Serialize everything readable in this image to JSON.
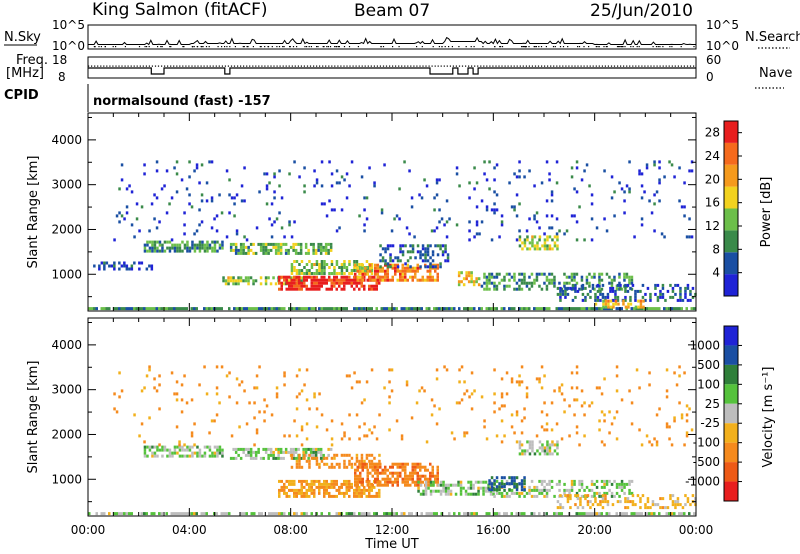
{
  "header": {
    "station": "King Salmon (fitACF)",
    "beam": "Beam 07",
    "date": "25/Jun/2010"
  },
  "top_panels": {
    "nsky_label": "N.Sky",
    "nsky_ticks": [
      "10^5",
      "10^0"
    ],
    "nsearch_label": "N.Search",
    "nsearch_ticks": [
      "10^5",
      "10^0"
    ],
    "freq_label_1": "Freq.",
    "freq_label_2": "[MHz]",
    "freq_ticks": [
      "18",
      "8"
    ],
    "nave_label": "Nave",
    "nave_ticks": [
      "60",
      "0"
    ],
    "cpid_label": "CPID",
    "cpid_text": "normalsound (fast) -157"
  },
  "colors": {
    "power_scale": [
      "#1f23d6",
      "#1a4fa3",
      "#3a8a4a",
      "#6cbf4a",
      "#f2d21f",
      "#f59a1d",
      "#f56a1d",
      "#e81e1e"
    ],
    "velocity_scale": [
      "#1f23d6",
      "#1a4fa3",
      "#2f7f3a",
      "#55c23c",
      "#bdbdbd",
      "#f2b01c",
      "#f58a1d",
      "#ee5a16",
      "#e81e1e"
    ],
    "frame": "#000000",
    "ground_scatter": "#bdbdbd"
  },
  "chart_data": [
    {
      "type": "heatmap",
      "title": "",
      "xlabel": "Time UT",
      "ylabel": "Slant Range [km]",
      "x_ticks": [
        "00:00",
        "04:00",
        "08:00",
        "12:00",
        "16:00",
        "20:00",
        "00:00"
      ],
      "y_ticks": [
        "1000",
        "2000",
        "3000",
        "4000"
      ],
      "xlim_hours": [
        0,
        24
      ],
      "ylim_km": [
        180,
        4600
      ],
      "colorbar": {
        "label": "Power [dB]",
        "ticks": [
          "4",
          "8",
          "12",
          "16",
          "20",
          "24",
          "28"
        ],
        "range": [
          0,
          30
        ]
      },
      "regions": [
        {
          "t": [
            0.0,
            24.0
          ],
          "r": [
            200,
            300
          ],
          "value": 10,
          "density": 0.85
        },
        {
          "t": [
            0.2,
            2.5
          ],
          "r": [
            1150,
            1350
          ],
          "value": 4,
          "density": 0.5
        },
        {
          "t": [
            2.2,
            5.3
          ],
          "r": [
            1550,
            1800
          ],
          "value": 10,
          "density": 0.7
        },
        {
          "t": [
            5.6,
            9.6
          ],
          "r": [
            1500,
            1750
          ],
          "value": 12,
          "density": 0.7
        },
        {
          "t": [
            5.3,
            8.5
          ],
          "r": [
            820,
            1000
          ],
          "value": 14,
          "density": 0.6
        },
        {
          "t": [
            8.0,
            11.2
          ],
          "r": [
            1050,
            1350
          ],
          "value": 14,
          "density": 0.65
        },
        {
          "t": [
            7.5,
            11.5
          ],
          "r": [
            700,
            1000
          ],
          "value": 28,
          "density": 0.75
        },
        {
          "t": [
            10.5,
            13.8
          ],
          "r": [
            900,
            1300
          ],
          "value": 22,
          "density": 0.7
        },
        {
          "t": [
            11.5,
            14.2
          ],
          "r": [
            1200,
            1700
          ],
          "value": 6,
          "density": 0.45
        },
        {
          "t": [
            14.6,
            15.4
          ],
          "r": [
            800,
            1100
          ],
          "value": 18,
          "density": 0.55
        },
        {
          "t": [
            15.5,
            21.5
          ],
          "r": [
            700,
            1050
          ],
          "value": 10,
          "density": 0.45
        },
        {
          "t": [
            17.0,
            18.5
          ],
          "r": [
            1600,
            1900
          ],
          "value": 14,
          "density": 0.55
        },
        {
          "t": [
            18.5,
            24.0
          ],
          "r": [
            450,
            800
          ],
          "value": 6,
          "density": 0.35
        },
        {
          "t": [
            1.0,
            24.0
          ],
          "r": [
            1800,
            3600
          ],
          "value": 4,
          "density": 0.05
        },
        {
          "t": [
            20.0,
            22.0
          ],
          "r": [
            300,
            500
          ],
          "value": 18,
          "density": 0.45
        }
      ]
    },
    {
      "type": "heatmap",
      "title": "",
      "xlabel": "Time UT",
      "ylabel": "Slant Range [km]",
      "x_ticks": [
        "00:00",
        "04:00",
        "08:00",
        "12:00",
        "16:00",
        "20:00",
        "00:00"
      ],
      "y_ticks": [
        "1000",
        "2000",
        "3000",
        "4000"
      ],
      "xlim_hours": [
        0,
        24
      ],
      "ylim_km": [
        180,
        4600
      ],
      "colorbar": {
        "label": "Velocity [m s⁻¹]",
        "ticks": [
          "1000",
          "500",
          "100",
          "25",
          "-25",
          "-100",
          "-500",
          "-1000"
        ],
        "range": [
          -1000,
          1000
        ]
      },
      "regions": [
        {
          "t": [
            0.0,
            24.0
          ],
          "r": [
            200,
            300
          ],
          "value": 0,
          "density": 0.7
        },
        {
          "t": [
            2.2,
            5.3
          ],
          "r": [
            1550,
            1800
          ],
          "value": 0,
          "density": 0.6
        },
        {
          "t": [
            5.6,
            9.6
          ],
          "r": [
            1500,
            1750
          ],
          "value": 0,
          "density": 0.6
        },
        {
          "t": [
            8.0,
            11.5
          ],
          "r": [
            1300,
            1600
          ],
          "value": -200,
          "density": 0.5
        },
        {
          "t": [
            7.5,
            11.5
          ],
          "r": [
            650,
            1000
          ],
          "value": -120,
          "density": 0.7
        },
        {
          "t": [
            10.5,
            13.8
          ],
          "r": [
            900,
            1400
          ],
          "value": -400,
          "density": 0.65
        },
        {
          "t": [
            13.0,
            16.0
          ],
          "r": [
            700,
            1000
          ],
          "value": 0,
          "density": 0.6
        },
        {
          "t": [
            16.0,
            21.5
          ],
          "r": [
            650,
            1000
          ],
          "value": 0,
          "density": 0.45
        },
        {
          "t": [
            15.8,
            17.2
          ],
          "r": [
            800,
            1100
          ],
          "value": 150,
          "density": 0.5
        },
        {
          "t": [
            17.0,
            18.5
          ],
          "r": [
            1600,
            1900
          ],
          "value": 0,
          "density": 0.5
        },
        {
          "t": [
            1.0,
            24.0
          ],
          "r": [
            1800,
            3600
          ],
          "value": -150,
          "density": 0.05
        },
        {
          "t": [
            18.5,
            24.0
          ],
          "r": [
            400,
            700
          ],
          "value": -60,
          "density": 0.3
        }
      ]
    }
  ]
}
